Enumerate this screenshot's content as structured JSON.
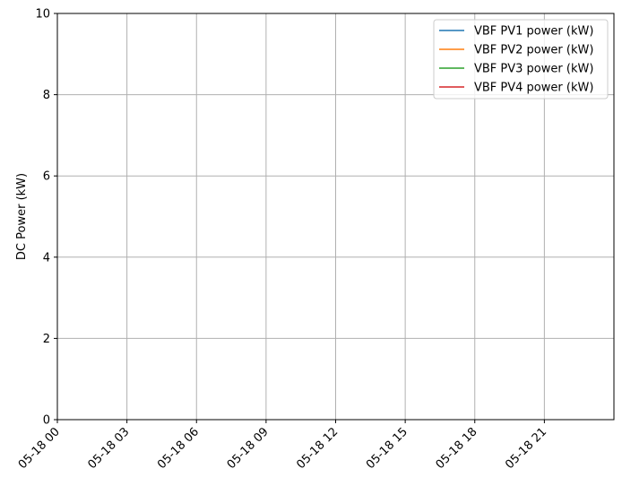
{
  "chart_data": {
    "type": "line",
    "title": "",
    "xlabel": "",
    "ylabel": "DC Power (kW)",
    "x_range": [
      "05-18 00:00",
      "05-18 24:00"
    ],
    "ylim": [
      0,
      10
    ],
    "y_ticks": [
      0,
      2,
      4,
      6,
      8,
      10
    ],
    "x_ticks": [
      "05-18 00",
      "05-18 03",
      "05-18 06",
      "05-18 09",
      "05-18 12",
      "05-18 15",
      "05-18 18",
      "05-18 21"
    ],
    "x_tick_hours": [
      0,
      3,
      6,
      9,
      12,
      15,
      18,
      21
    ],
    "grid": true,
    "legend_position": "top-right",
    "series": [
      {
        "name": "VBF PV1 power (kW)",
        "color": "#1f77b4",
        "values": []
      },
      {
        "name": "VBF PV2 power (kW)",
        "color": "#ff7f0e",
        "values": []
      },
      {
        "name": "VBF PV3 power (kW)",
        "color": "#2ca02c",
        "values": []
      },
      {
        "name": "VBF PV4 power (kW)",
        "color": "#d62728",
        "values": []
      }
    ]
  }
}
